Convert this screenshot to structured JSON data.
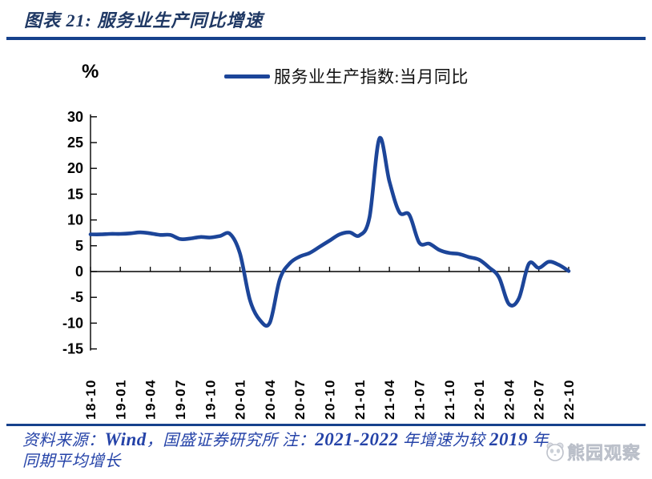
{
  "header": {
    "title": "图表 21: 服务业生产同比增速"
  },
  "axis_unit_label": "%",
  "legend": {
    "series_label": "服务业生产指数:当月同比"
  },
  "footer": {
    "line1": {
      "p1": "资料来源：",
      "p2": "Wind",
      "p3": "，国盛证券研究所 注：",
      "p4": "2021-2022",
      "p5": " 年增速为较 ",
      "p6": "2019",
      "p7": " 年"
    },
    "line2": "同期平均增长"
  },
  "watermark": {
    "icon": "panda-logo",
    "text": "熊园观察"
  },
  "colors": {
    "line": "#1C4599",
    "rule": "#16418C",
    "title_text": "#1F3864",
    "footer_text": "#2543A8",
    "axis": "#000000",
    "watermark_gray": "#c6cad3"
  },
  "chart_data": {
    "type": "line",
    "title": "服务业生产同比增速",
    "xlabel": "",
    "ylabel": "%",
    "ylim": [
      -15,
      30
    ],
    "ytick_step": 5,
    "grid": false,
    "legend_position": "top-center",
    "x_tick_labels": [
      "18-10",
      "19-01",
      "19-04",
      "19-07",
      "19-10",
      "20-01",
      "20-04",
      "20-07",
      "20-10",
      "21-01",
      "21-04",
      "21-07",
      "21-10",
      "22-01",
      "22-04",
      "22-07",
      "22-10"
    ],
    "x": [
      "18-10",
      "18-11",
      "18-12",
      "19-01",
      "19-02",
      "19-03",
      "19-04",
      "19-05",
      "19-06",
      "19-07",
      "19-08",
      "19-09",
      "19-10",
      "19-11",
      "19-12",
      "20-01",
      "20-02",
      "20-03",
      "20-04",
      "20-05",
      "20-06",
      "20-07",
      "20-08",
      "20-09",
      "20-10",
      "20-11",
      "20-12",
      "21-01",
      "21-02",
      "21-03",
      "21-04",
      "21-05",
      "21-06",
      "21-07",
      "21-08",
      "21-09",
      "21-10",
      "21-11",
      "21-12",
      "22-01",
      "22-02",
      "22-03",
      "22-04",
      "22-05",
      "22-06",
      "22-07",
      "22-08",
      "22-09",
      "22-10"
    ],
    "series": [
      {
        "name": "服务业生产指数:当月同比",
        "values": [
          7.2,
          7.2,
          7.3,
          7.3,
          7.4,
          7.6,
          7.4,
          7.1,
          7.1,
          6.3,
          6.4,
          6.7,
          6.6,
          6.9,
          7.3,
          3.5,
          -5.5,
          -9.4,
          -9.9,
          -1.5,
          1.6,
          2.9,
          3.6,
          4.8,
          6.0,
          7.2,
          7.6,
          7.0,
          10.5,
          25.8,
          17.5,
          11.5,
          11.0,
          5.6,
          5.4,
          4.2,
          3.6,
          3.4,
          2.8,
          2.3,
          0.8,
          -1.1,
          -6.3,
          -5.2,
          1.5,
          0.7,
          1.9,
          1.3,
          0.1
        ]
      }
    ]
  }
}
